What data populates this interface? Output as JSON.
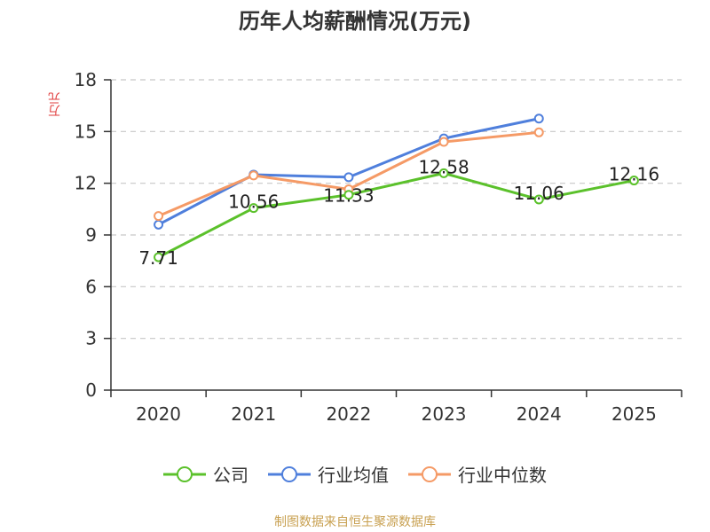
{
  "chart_data": {
    "type": "line",
    "title": "历年人均薪酬情况(万元)",
    "ylabel": "万元",
    "categories": [
      "2020",
      "2021",
      "2022",
      "2023",
      "2024",
      "2025"
    ],
    "ylim": [
      0,
      18
    ],
    "yticks": [
      "0",
      "3",
      "6",
      "9",
      "12",
      "15",
      "18"
    ],
    "grid": true,
    "legend_position": "bottom",
    "series": [
      {
        "name": "公司",
        "color": "#5bc12b",
        "values": [
          7.71,
          10.56,
          11.33,
          12.58,
          11.06,
          12.16
        ],
        "labels": [
          "7.71",
          "10.56",
          "11.33",
          "12.58",
          "11.06",
          "12.16"
        ]
      },
      {
        "name": "行业均值",
        "color": "#4f7fdc",
        "values": [
          9.6,
          12.5,
          12.35,
          14.6,
          15.75,
          null
        ]
      },
      {
        "name": "行业中位数",
        "color": "#f59a66",
        "values": [
          10.1,
          12.45,
          11.65,
          14.4,
          14.95,
          null
        ]
      }
    ]
  },
  "source": "制图数据来自恒生聚源数据库"
}
